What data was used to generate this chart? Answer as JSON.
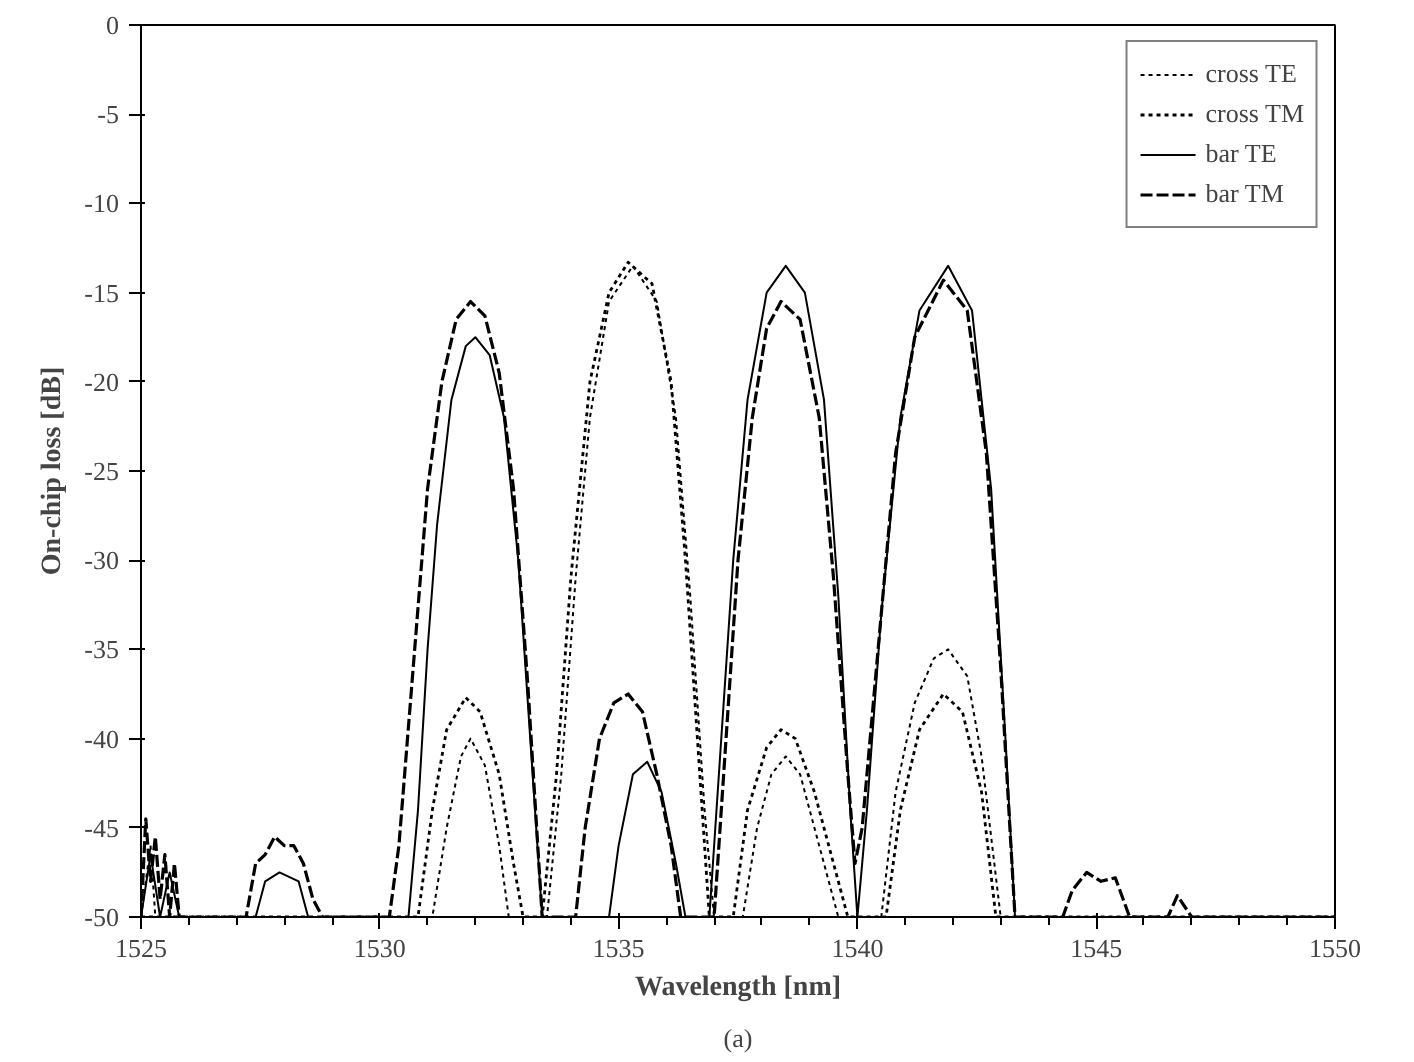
{
  "chart_data": {
    "type": "line",
    "xlabel": "Wavelength [nm]",
    "ylabel": "On-chip loss [dB]",
    "annotations": [
      "(a)"
    ],
    "xlim": [
      1525,
      1550
    ],
    "xticks": [
      1525,
      1530,
      1535,
      1540,
      1545,
      1550
    ],
    "ylim": [
      -50,
      0
    ],
    "yticks": [
      0,
      -5,
      -10,
      -15,
      -20,
      -25,
      -30,
      -35,
      -40,
      -45,
      -50
    ],
    "grid": false,
    "legend": "top right",
    "series": [
      {
        "name": "cross TE",
        "color": "#000000",
        "line_style": "dotted",
        "x": [
          1525,
          1525.2,
          1525.3,
          1531.1,
          1531.4,
          1531.7,
          1531.9,
          1532.2,
          1532.5,
          1532.7,
          1533.5,
          1533.8,
          1534.1,
          1534.4,
          1534.8,
          1535.3,
          1535.8,
          1536.2,
          1536.5,
          1536.8,
          1537.0,
          1537.6,
          1537.9,
          1538.2,
          1538.5,
          1538.8,
          1539.2,
          1539.6,
          1540.5,
          1540.8,
          1541.2,
          1541.6,
          1541.9,
          1542.3,
          1542.6,
          1543.0,
          1550
        ],
        "values": [
          -50,
          -46,
          -50,
          -50,
          -45,
          -41,
          -40,
          -41.5,
          -46,
          -50,
          -50,
          -42,
          -31,
          -22,
          -15.5,
          -13.5,
          -15.5,
          -22,
          -32,
          -44,
          -50,
          -50,
          -45,
          -42,
          -41,
          -42,
          -46,
          -50,
          -50,
          -43,
          -38,
          -35.5,
          -35,
          -36.5,
          -41,
          -50,
          -50
        ]
      },
      {
        "name": "cross TM",
        "color": "#000000",
        "line_style": "dotted",
        "x": [
          1525,
          1530.8,
          1531.1,
          1531.4,
          1531.8,
          1532.1,
          1532.5,
          1532.8,
          1533.0,
          1533.4,
          1533.7,
          1534.0,
          1534.4,
          1534.8,
          1535.2,
          1535.7,
          1536.1,
          1536.4,
          1536.7,
          1536.9,
          1537.4,
          1537.7,
          1538.1,
          1538.4,
          1538.7,
          1539.1,
          1539.5,
          1539.8,
          1540.6,
          1540.9,
          1541.3,
          1541.8,
          1542.2,
          1542.6,
          1542.9,
          1550
        ],
        "values": [
          -50,
          -50,
          -44,
          -39.5,
          -37.7,
          -38.5,
          -42,
          -47,
          -50,
          -50,
          -42,
          -31,
          -20,
          -15,
          -13.3,
          -14.5,
          -20,
          -30,
          -42,
          -50,
          -50,
          -44,
          -40.5,
          -39.5,
          -40,
          -43,
          -47,
          -50,
          -50,
          -44,
          -39.5,
          -37.5,
          -38.5,
          -43,
          -50,
          -50
        ]
      },
      {
        "name": "bar TE",
        "color": "#000000",
        "line_style": "solid",
        "x": [
          1525,
          1525.2,
          1525.4,
          1525.6,
          1525.8,
          1527.4,
          1527.6,
          1527.9,
          1528.3,
          1528.5,
          1530.6,
          1530.8,
          1531.0,
          1531.2,
          1531.5,
          1531.8,
          1532.0,
          1532.3,
          1532.6,
          1532.9,
          1533.1,
          1533.3,
          1533.4,
          1534.8,
          1535.0,
          1535.3,
          1535.6,
          1535.9,
          1536.2,
          1536.4,
          1536.9,
          1537.1,
          1537.4,
          1537.7,
          1538.1,
          1538.5,
          1538.9,
          1539.3,
          1539.6,
          1539.85,
          1540.0,
          1540.2,
          1540.5,
          1540.9,
          1541.3,
          1541.9,
          1542.4,
          1542.8,
          1543.1,
          1543.3,
          1550
        ],
        "values": [
          -50,
          -46.5,
          -50,
          -47.5,
          -50,
          -50,
          -48,
          -47.5,
          -48,
          -50,
          -50,
          -44,
          -35,
          -28,
          -21,
          -18,
          -17.5,
          -18.5,
          -22,
          -30,
          -38,
          -46,
          -50,
          -50,
          -46,
          -42,
          -41.3,
          -43,
          -47,
          -50,
          -50,
          -42,
          -30,
          -21,
          -15,
          -13.5,
          -15,
          -21,
          -32,
          -44,
          -50,
          -44,
          -33,
          -22,
          -16,
          -13.5,
          -16,
          -26,
          -40,
          -50,
          -50
        ]
      },
      {
        "name": "bar TM",
        "color": "#000000",
        "line_style": "dashed",
        "x": [
          1525,
          1525.1,
          1525.2,
          1525.3,
          1525.4,
          1525.5,
          1525.6,
          1525.7,
          1525.8,
          1527.2,
          1527.4,
          1527.6,
          1527.8,
          1528.0,
          1528.2,
          1528.4,
          1528.6,
          1528.8,
          1530.2,
          1530.4,
          1530.7,
          1531.0,
          1531.3,
          1531.6,
          1531.9,
          1532.2,
          1532.5,
          1532.8,
          1533.1,
          1533.4,
          1534.1,
          1534.3,
          1534.6,
          1534.9,
          1535.2,
          1535.5,
          1535.8,
          1536.1,
          1536.3,
          1537.0,
          1537.2,
          1537.5,
          1537.8,
          1538.1,
          1538.4,
          1538.8,
          1539.2,
          1539.5,
          1539.8,
          1539.95,
          1540.1,
          1540.4,
          1540.8,
          1541.2,
          1541.8,
          1542.3,
          1542.7,
          1543.0,
          1543.3,
          1544.3,
          1544.5,
          1544.8,
          1545.1,
          1545.4,
          1545.7,
          1546.5,
          1546.7,
          1547.0,
          1550
        ],
        "values": [
          -50,
          -44.5,
          -48,
          -45.5,
          -49,
          -46.5,
          -50,
          -47,
          -50,
          -50,
          -47,
          -46.5,
          -45.5,
          -46,
          -46,
          -47,
          -49,
          -50,
          -50,
          -46,
          -36,
          -26,
          -20,
          -16.5,
          -15.5,
          -16.3,
          -19.5,
          -26,
          -37,
          -50,
          -50,
          -45,
          -40,
          -38,
          -37.5,
          -38.5,
          -42,
          -46,
          -50,
          -50,
          -42,
          -30,
          -22,
          -17,
          -15.5,
          -16.5,
          -22,
          -31,
          -42,
          -47,
          -45,
          -36,
          -24,
          -17.5,
          -14.3,
          -16,
          -24,
          -36,
          -50,
          -50,
          -48.5,
          -47.5,
          -48,
          -47.8,
          -50,
          -50,
          -48.8,
          -50,
          -50
        ]
      }
    ]
  }
}
